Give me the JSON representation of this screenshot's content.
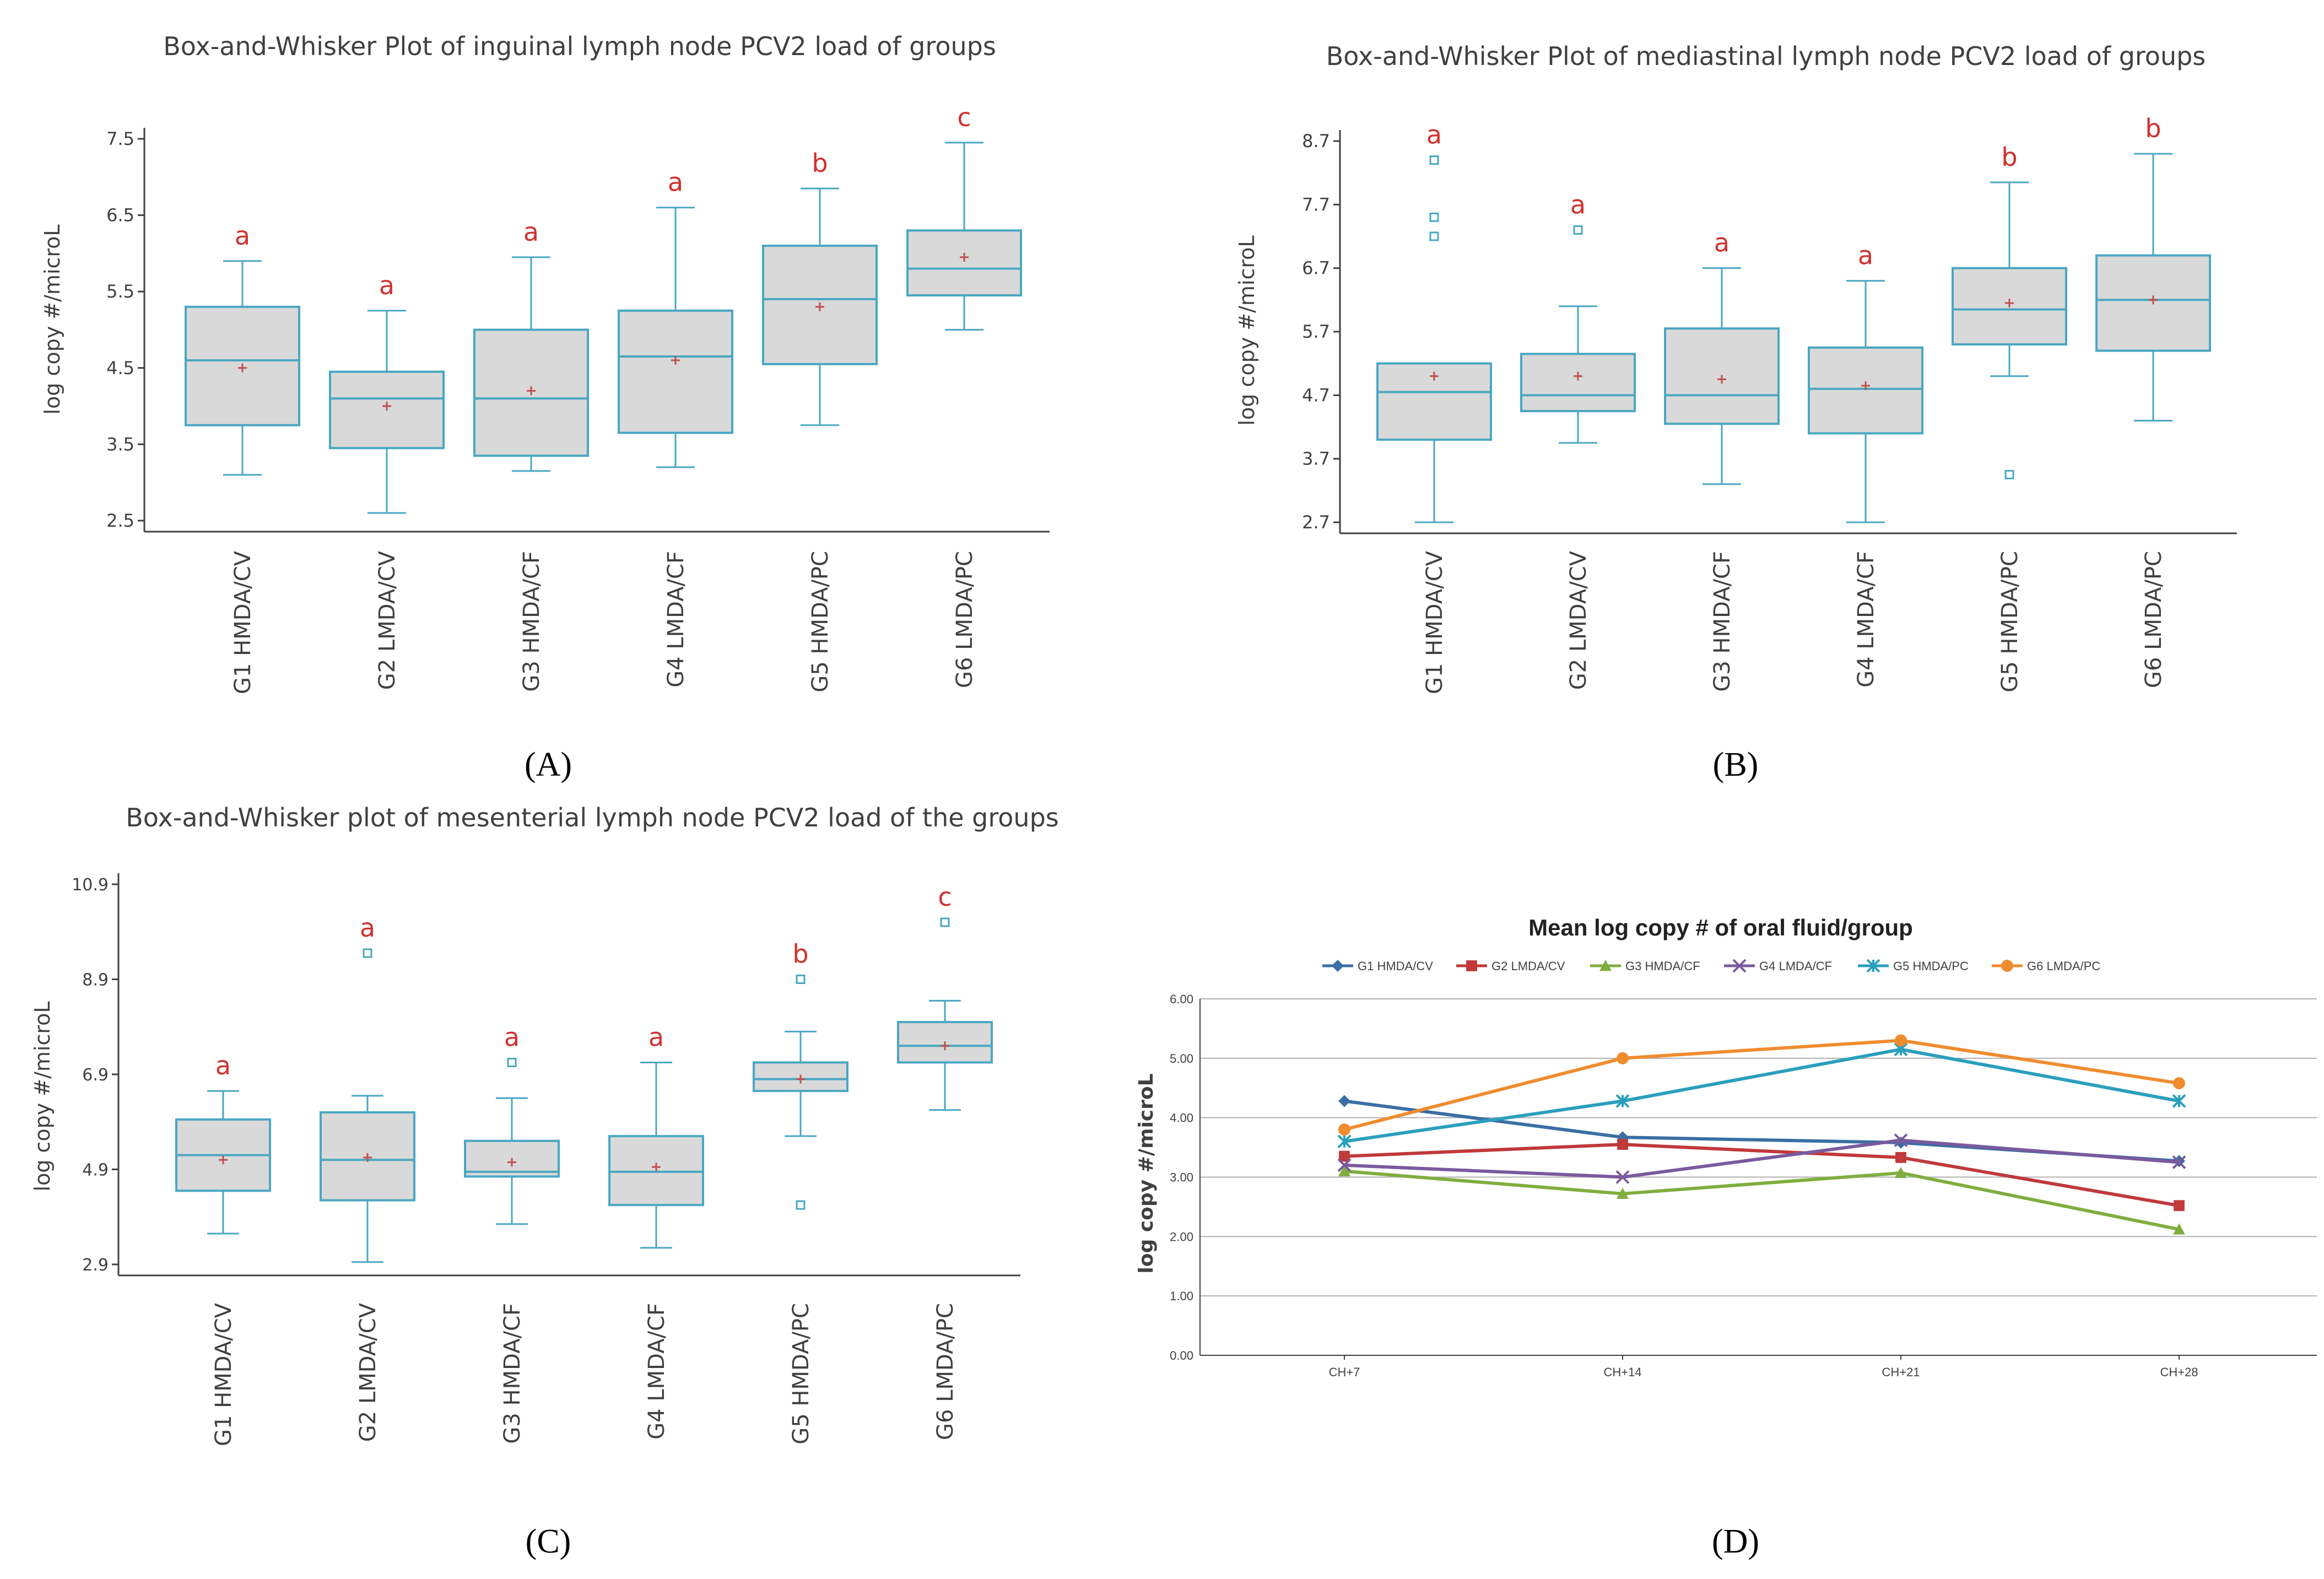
{
  "panel_labels": [
    "(A)",
    "(B)",
    "(C)",
    "(D)"
  ],
  "colors": {
    "box_stroke": "#4aa7c2",
    "box_fill": "#d9d9d9",
    "letter": "#d0312d",
    "mean_marker": "#c0504d",
    "outlier": "#4aa7c2",
    "axis": "#404040",
    "line_series": [
      "#3a6ea5",
      "#c0393b",
      "#7fae3e",
      "#7a5a9e",
      "#2a9fbd",
      "#f08c2e"
    ],
    "gridline": "#b0b0b0"
  },
  "chart_data": [
    {
      "type": "box",
      "title": "Box-and-Whisker Plot of inguinal lymph node PCV2 load of groups",
      "ylabel": "log copy #/microL",
      "yticks": [
        "7.5",
        "6.5",
        "5.5",
        "4.5",
        "3.5",
        "2.5"
      ],
      "ytick_values": [
        7.5,
        6.5,
        5.5,
        4.5,
        3.5,
        2.5
      ],
      "ylim": [
        2.4,
        7.6
      ],
      "categories": [
        "G1 HMDA/CV",
        "G2 LMDA/CV",
        "G3 HMDA/CF",
        "G4 LMDA/CF",
        "G5 HMDA/PC",
        "G6 LMDA/PC"
      ],
      "letters": [
        "a",
        "a",
        "a",
        "a",
        "b",
        "c"
      ],
      "boxes": [
        {
          "min": 3.1,
          "q1": 3.75,
          "median": 4.6,
          "q3": 5.3,
          "max": 5.9,
          "mean": 4.5,
          "outliers": []
        },
        {
          "min": 2.6,
          "q1": 3.45,
          "median": 4.1,
          "q3": 4.45,
          "max": 5.25,
          "mean": 4.0,
          "outliers": []
        },
        {
          "min": 3.15,
          "q1": 3.35,
          "median": 4.1,
          "q3": 5.0,
          "max": 5.95,
          "mean": 4.2,
          "outliers": []
        },
        {
          "min": 3.2,
          "q1": 3.65,
          "median": 4.65,
          "q3": 5.25,
          "max": 6.6,
          "mean": 4.6,
          "outliers": []
        },
        {
          "min": 3.75,
          "q1": 4.55,
          "median": 5.4,
          "q3": 6.1,
          "max": 6.85,
          "mean": 5.3,
          "outliers": []
        },
        {
          "min": 5.0,
          "q1": 5.45,
          "median": 5.8,
          "q3": 6.3,
          "max": 7.45,
          "mean": 5.95,
          "outliers": []
        }
      ]
    },
    {
      "type": "box",
      "title": "Box-and-Whisker Plot of mediastinal lymph node PCV2 load of groups",
      "ylabel": "log copy #/microL",
      "yticks": [
        "8.7",
        "7.7",
        "6.7",
        "5.7",
        "4.7",
        "3.7",
        "2.7"
      ],
      "ytick_values": [
        8.7,
        7.7,
        6.7,
        5.7,
        4.7,
        3.7,
        2.7
      ],
      "ylim": [
        2.6,
        8.8
      ],
      "categories": [
        "G1 HMDA/CV",
        "G2 LMDA/CV",
        "G3 HMDA/CF",
        "G4 LMDA/CF",
        "G5 HMDA/PC",
        "G6 LMDA/PC"
      ],
      "letters": [
        "a",
        "a",
        "a",
        "a",
        "b",
        "b"
      ],
      "boxes": [
        {
          "min": 2.7,
          "q1": 4.0,
          "median": 4.75,
          "q3": 5.2,
          "max": 5.2,
          "mean": 5.0,
          "outliers": [
            8.4,
            7.5,
            7.2
          ]
        },
        {
          "min": 3.95,
          "q1": 4.45,
          "median": 4.7,
          "q3": 5.35,
          "max": 6.1,
          "mean": 5.0,
          "outliers": [
            7.3
          ]
        },
        {
          "min": 3.3,
          "q1": 4.25,
          "median": 4.7,
          "q3": 5.75,
          "max": 6.7,
          "mean": 4.95,
          "outliers": []
        },
        {
          "min": 2.7,
          "q1": 4.1,
          "median": 4.8,
          "q3": 5.45,
          "max": 6.5,
          "mean": 4.85,
          "outliers": []
        },
        {
          "min": 5.0,
          "q1": 5.5,
          "median": 6.05,
          "q3": 6.7,
          "max": 8.05,
          "mean": 6.15,
          "outliers": [
            3.45
          ]
        },
        {
          "min": 4.3,
          "q1": 5.4,
          "median": 6.2,
          "q3": 6.9,
          "max": 8.5,
          "mean": 6.2,
          "outliers": []
        }
      ]
    },
    {
      "type": "box",
      "title": "Box-and-Whisker plot of mesenterial lymph node PCV2 load of the groups",
      "ylabel": "log copy #/microL",
      "yticks": [
        "10.9",
        "8.9",
        "6.9",
        "4.9",
        "2.9"
      ],
      "ytick_values": [
        10.9,
        8.9,
        6.9,
        4.9,
        2.9
      ],
      "ylim": [
        2.7,
        11.1
      ],
      "categories": [
        "G1 HMDA/CV",
        "G2 LMDA/CV",
        "G3 HMDA/CF",
        "G4 LMDA/CF",
        "G5 HMDA/PC",
        "G6 LMDA/PC"
      ],
      "letters": [
        "a",
        "a",
        "a",
        "a",
        "b",
        "c"
      ],
      "boxes": [
        {
          "min": 3.55,
          "q1": 4.45,
          "median": 5.2,
          "q3": 5.95,
          "max": 6.55,
          "mean": 5.1,
          "outliers": []
        },
        {
          "min": 2.95,
          "q1": 4.25,
          "median": 5.1,
          "q3": 6.1,
          "max": 6.45,
          "mean": 5.15,
          "outliers": [
            9.45
          ]
        },
        {
          "min": 3.75,
          "q1": 4.75,
          "median": 4.85,
          "q3": 5.5,
          "max": 6.4,
          "mean": 5.05,
          "outliers": [
            7.15
          ]
        },
        {
          "min": 3.25,
          "q1": 4.15,
          "median": 4.85,
          "q3": 5.6,
          "max": 7.15,
          "mean": 4.95,
          "outliers": []
        },
        {
          "min": 5.6,
          "q1": 6.55,
          "median": 6.8,
          "q3": 7.15,
          "max": 7.8,
          "mean": 6.8,
          "outliers": [
            8.9,
            4.15
          ]
        },
        {
          "min": 6.15,
          "q1": 7.15,
          "median": 7.5,
          "q3": 8.0,
          "max": 8.45,
          "mean": 7.5,
          "outliers": [
            10.1
          ]
        }
      ]
    },
    {
      "type": "line",
      "title": "Mean log copy # of oral fluid/group",
      "ylabel": "log copy #/microL",
      "yticks": [
        "6.00",
        "5.00",
        "4.00",
        "3.00",
        "2.00",
        "1.00",
        "0.00"
      ],
      "ytick_values": [
        6,
        5,
        4,
        3,
        2,
        1,
        0
      ],
      "ylim": [
        0,
        6
      ],
      "categories": [
        "CH+7",
        "CH+14",
        "CH+21",
        "CH+28"
      ],
      "series": [
        {
          "name": "G1 HMDA/CV",
          "marker": "diamond",
          "values": [
            4.28,
            3.67,
            3.58,
            3.27
          ]
        },
        {
          "name": "G2 LMDA/CV",
          "marker": "square",
          "values": [
            3.35,
            3.55,
            3.33,
            2.52
          ]
        },
        {
          "name": "G3 HMDA/CF",
          "marker": "triangle",
          "values": [
            3.1,
            2.72,
            3.07,
            2.12
          ]
        },
        {
          "name": "G4 LMDA/CF",
          "marker": "x",
          "values": [
            3.2,
            3.0,
            3.62,
            3.25
          ]
        },
        {
          "name": "G5 HMDA/PC",
          "marker": "star",
          "values": [
            3.6,
            4.28,
            5.15,
            4.28
          ]
        },
        {
          "name": "G6 LMDA/PC",
          "marker": "circle",
          "values": [
            3.8,
            5.0,
            5.3,
            4.58
          ]
        }
      ]
    }
  ]
}
